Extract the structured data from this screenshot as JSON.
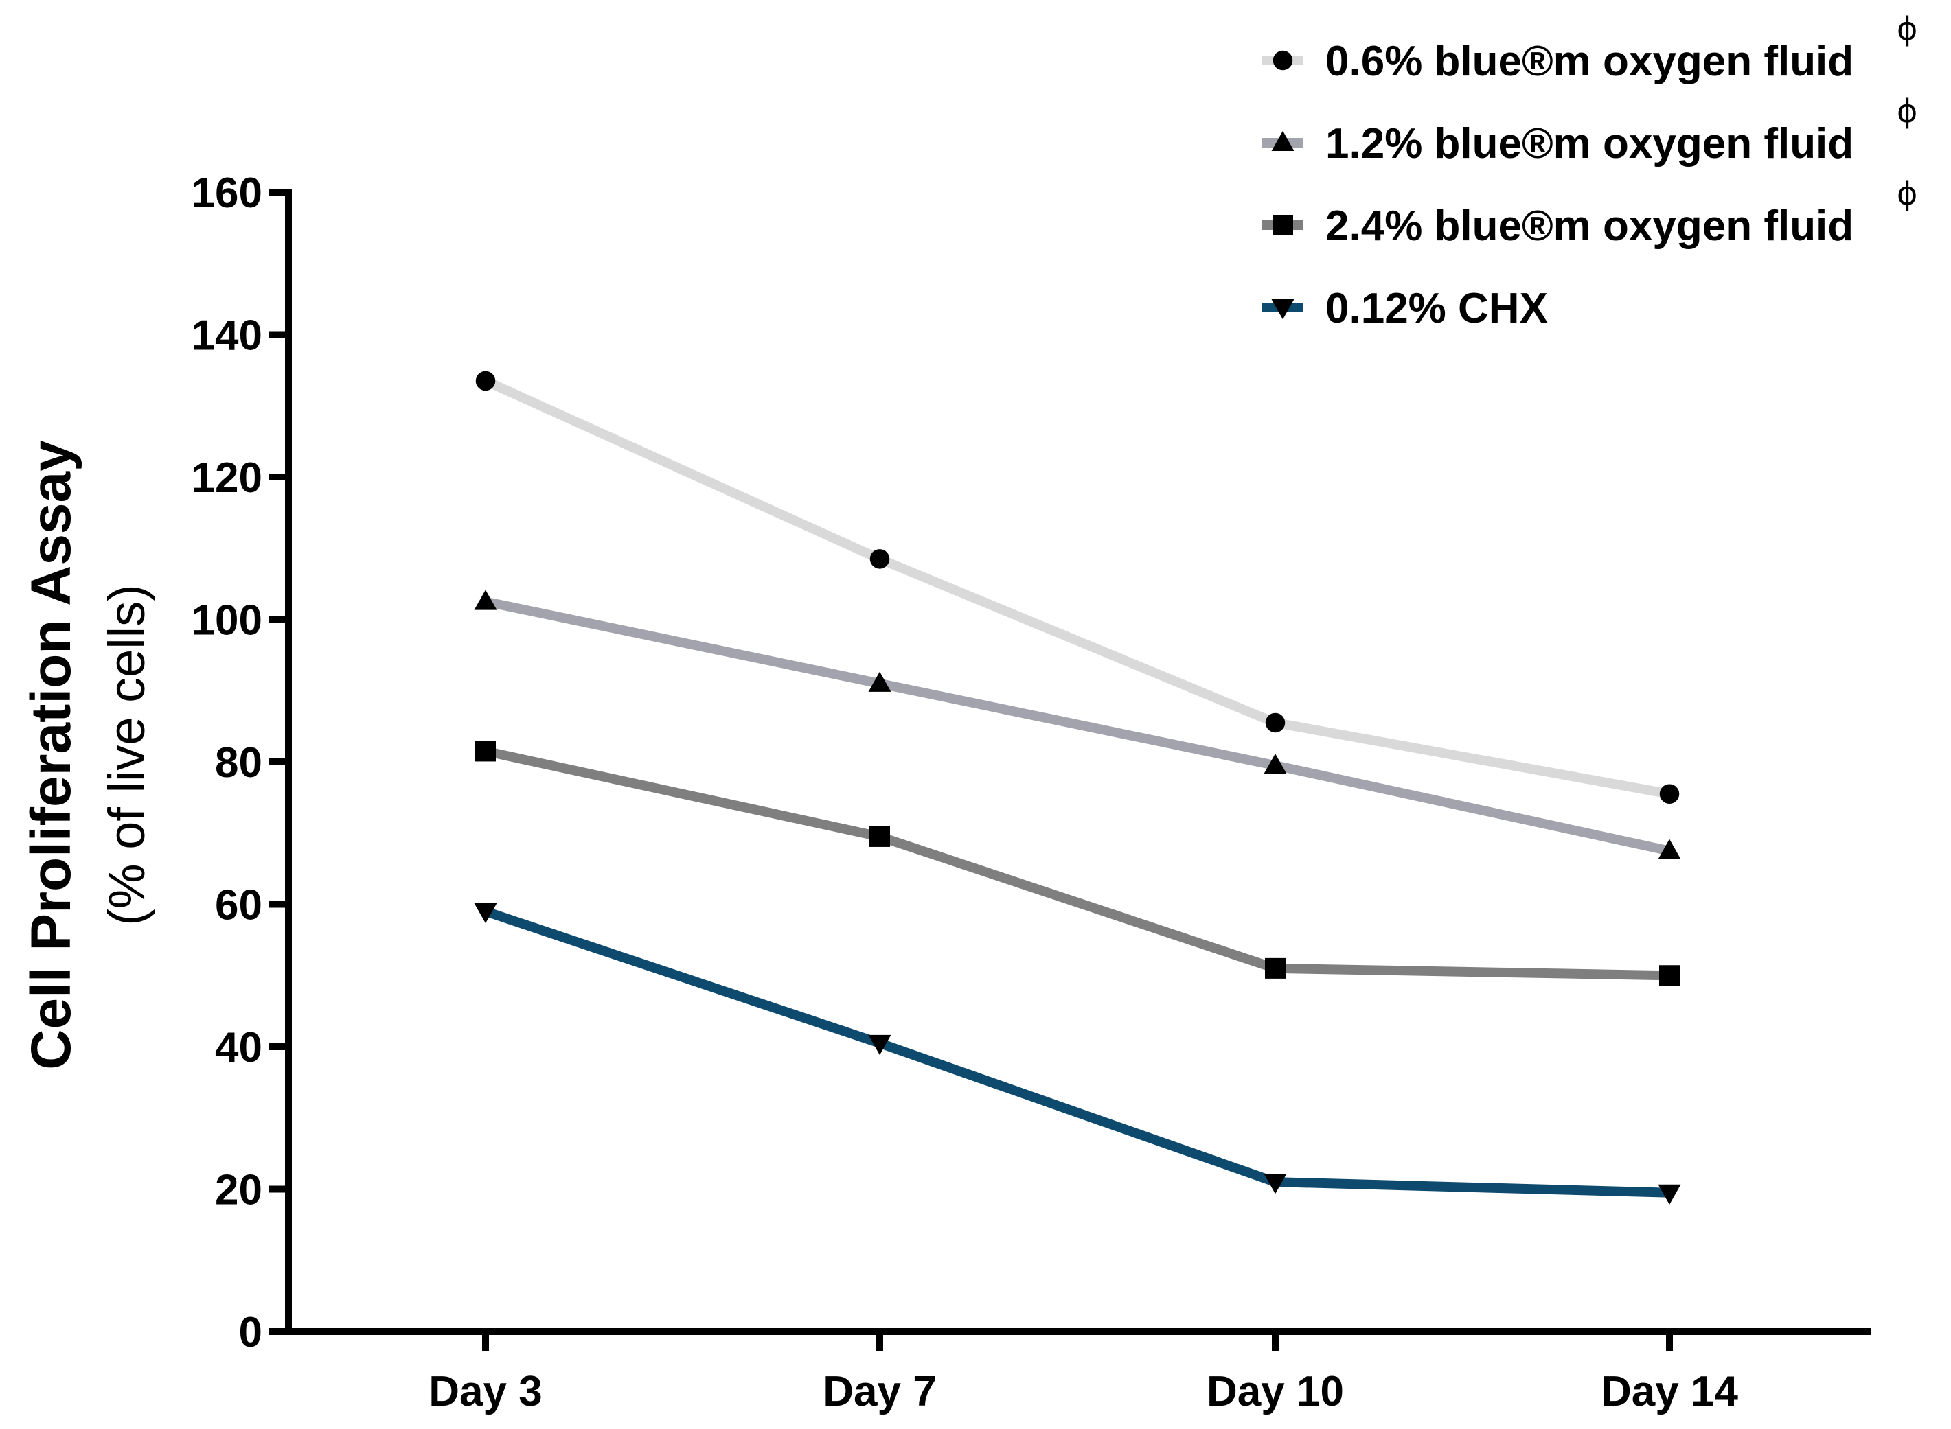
{
  "chart_data": {
    "type": "line",
    "title": "",
    "xlabel": "",
    "ylabel": "Cell Proliferation Assay",
    "ylabel_sub": "(% of live cells)",
    "categories": [
      "Day 3",
      "Day 7",
      "Day 10",
      "Day 14"
    ],
    "ylim": [
      0,
      160
    ],
    "yticks": [
      0,
      20,
      40,
      60,
      80,
      100,
      120,
      140,
      160
    ],
    "ytick_labels": [
      "0",
      "20",
      "40",
      "60",
      "80",
      "100",
      "120",
      "140",
      "160"
    ],
    "grid": false,
    "legend_position": "top-right",
    "series": [
      {
        "name": "0.6% blue®m oxygen fluid",
        "superscript": "ϕ",
        "marker": "circle",
        "color": "#d9d9d9",
        "values": [
          133.5,
          108.5,
          85.5,
          75.5
        ]
      },
      {
        "name": "1.2% blue®m oxygen fluid",
        "superscript": "ϕ",
        "marker": "triangle-up",
        "color": "#a3a3ad",
        "values": [
          102.5,
          91.0,
          79.5,
          67.5
        ]
      },
      {
        "name": "2.4% blue®m oxygen fluid",
        "superscript": "ϕ",
        "marker": "square",
        "color": "#7f7f7f",
        "values": [
          81.5,
          69.5,
          51.0,
          50.0
        ]
      },
      {
        "name": "0.12% CHX",
        "superscript": "",
        "marker": "triangle-down",
        "color": "#0e4a6e",
        "values": [
          59.0,
          40.5,
          21.0,
          19.5
        ]
      }
    ]
  }
}
